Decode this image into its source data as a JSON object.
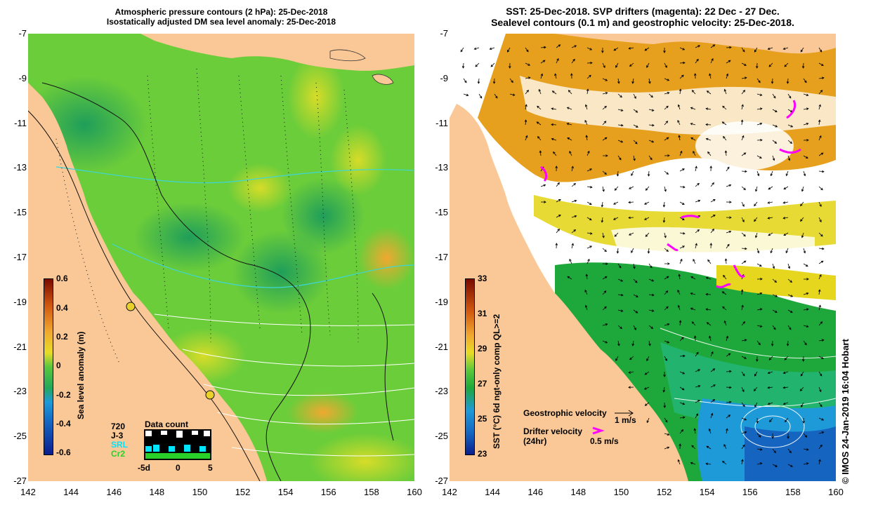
{
  "left_panel": {
    "title_line1": "Atmospheric pressure contours (2 hPa): 25-Dec-2018",
    "title_line2": "Isostatically adjusted DM sea level anomaly: 25-Dec-2018",
    "colorbar": {
      "title": "Sea level anomaly (m)",
      "labels": [
        "0.6",
        "0.4",
        "0.2",
        "0",
        "-0.2",
        "-0.4",
        "-0.6"
      ]
    },
    "satellites": [
      "720",
      "J-3",
      "SRL",
      "Cr2"
    ],
    "satellite_colors": [
      "#ffffff",
      "#000000",
      "#00e5ff",
      "#2ad02a"
    ],
    "data_count": {
      "title": "Data count",
      "axis_labels": [
        "-5d",
        "0",
        "5"
      ]
    }
  },
  "right_panel": {
    "title_line1": "SST: 25-Dec-2018. SVP drifters (magenta): 22 Dec - 27 Dec.",
    "title_line2": "Sealevel contours (0.1 m) and geostrophic velocity: 25-Dec-2018.",
    "colorbar": {
      "title": "SST (°C) 6d ngt-only comp QL>=2",
      "labels": [
        "33",
        "31",
        "29",
        "27",
        "25",
        "23"
      ]
    },
    "geo_velocity_label": "Geostrophic velocity",
    "geo_velocity_scale": "1 m/s",
    "drifter_label_line1": "Drifter velocity",
    "drifter_label_line2": "(24hr)",
    "drifter_scale": "0.5 m/s"
  },
  "axes": {
    "x_ticks": [
      "142",
      "144",
      "146",
      "148",
      "150",
      "152",
      "154",
      "156",
      "158",
      "160"
    ],
    "y_ticks": [
      "-7",
      "-9",
      "-11",
      "-13",
      "-15",
      "-17",
      "-19",
      "-21",
      "-23",
      "-25",
      "-27"
    ]
  },
  "credit": "© IMOS 24-Jan-2019 16:04 Hobart",
  "colors": {
    "land": "#fac896",
    "sla_mid": "#5ac83c",
    "sst_warm": "#e6a01e",
    "drifter": "#ff00ff"
  }
}
